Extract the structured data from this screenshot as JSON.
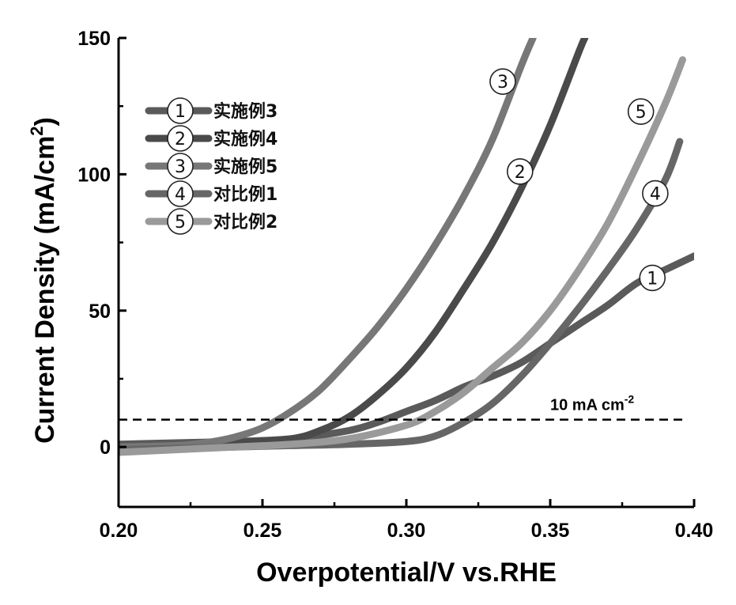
{
  "chart_data": {
    "type": "line",
    "title": "",
    "xlabel": "Overpotential/V vs.RHE",
    "ylabel": "Current Density (mA/cm",
    "ylabel_sup": "2",
    "ylabel_close": ")",
    "xlim": [
      0.2,
      0.4
    ],
    "ylim": [
      -22,
      150
    ],
    "xticks": [
      0.2,
      0.25,
      0.3,
      0.35,
      0.4
    ],
    "xtick_labels": [
      "0.20",
      "0.25",
      "0.30",
      "0.35",
      "0.40"
    ],
    "yticks": [
      0,
      50,
      100,
      150
    ],
    "ytick_labels": [
      "0",
      "50",
      "100",
      "150"
    ],
    "legend_position": "top-left",
    "reference_line": {
      "y": 10,
      "label": "10 mA cm",
      "label_sup": "-2"
    },
    "series": [
      {
        "name": "实施例3",
        "marker": "①",
        "color": "#5a5a5a",
        "points": [
          [
            0.2,
            1
          ],
          [
            0.22,
            1.5
          ],
          [
            0.24,
            2
          ],
          [
            0.26,
            3
          ],
          [
            0.28,
            6
          ],
          [
            0.29,
            9
          ],
          [
            0.3,
            13
          ],
          [
            0.31,
            17
          ],
          [
            0.32,
            22
          ],
          [
            0.33,
            26
          ],
          [
            0.34,
            31
          ],
          [
            0.35,
            38
          ],
          [
            0.36,
            45
          ],
          [
            0.37,
            52
          ],
          [
            0.38,
            60
          ],
          [
            0.39,
            65
          ],
          [
            0.4,
            70
          ]
        ],
        "marker_point": [
          0.3855,
          62
        ]
      },
      {
        "name": "实施例4",
        "marker": "②",
        "color": "#4a4a4a",
        "points": [
          [
            0.2,
            0
          ],
          [
            0.22,
            0.5
          ],
          [
            0.24,
            1.5
          ],
          [
            0.26,
            3
          ],
          [
            0.27,
            6
          ],
          [
            0.28,
            11
          ],
          [
            0.29,
            19
          ],
          [
            0.3,
            29
          ],
          [
            0.31,
            42
          ],
          [
            0.32,
            58
          ],
          [
            0.33,
            75
          ],
          [
            0.34,
            95
          ],
          [
            0.35,
            118
          ],
          [
            0.36,
            145
          ],
          [
            0.362,
            150
          ]
        ],
        "marker_point": [
          0.3395,
          101
        ]
      },
      {
        "name": "实施例5",
        "marker": "③",
        "color": "#777777",
        "points": [
          [
            0.2,
            0
          ],
          [
            0.22,
            0.5
          ],
          [
            0.23,
            1.5
          ],
          [
            0.24,
            3.5
          ],
          [
            0.25,
            7
          ],
          [
            0.26,
            13
          ],
          [
            0.27,
            21
          ],
          [
            0.28,
            32
          ],
          [
            0.29,
            44
          ],
          [
            0.3,
            58
          ],
          [
            0.31,
            74
          ],
          [
            0.32,
            92
          ],
          [
            0.33,
            113
          ],
          [
            0.34,
            140
          ],
          [
            0.344,
            150
          ]
        ],
        "marker_point": [
          0.3335,
          134
        ]
      },
      {
        "name": "对比例1",
        "marker": "④",
        "color": "#666666",
        "points": [
          [
            0.2,
            -1
          ],
          [
            0.22,
            -0.5
          ],
          [
            0.24,
            0
          ],
          [
            0.26,
            0.5
          ],
          [
            0.28,
            1
          ],
          [
            0.3,
            2
          ],
          [
            0.31,
            4
          ],
          [
            0.32,
            9
          ],
          [
            0.33,
            16
          ],
          [
            0.34,
            26
          ],
          [
            0.35,
            38
          ],
          [
            0.36,
            51
          ],
          [
            0.37,
            65
          ],
          [
            0.38,
            80
          ],
          [
            0.39,
            98
          ],
          [
            0.395,
            112
          ]
        ],
        "marker_point": [
          0.3865,
          93
        ]
      },
      {
        "name": "对比例2",
        "marker": "⑤",
        "color": "#9a9a9a",
        "points": [
          [
            0.2,
            -2
          ],
          [
            0.22,
            -1
          ],
          [
            0.24,
            0
          ],
          [
            0.26,
            1
          ],
          [
            0.28,
            3
          ],
          [
            0.3,
            8
          ],
          [
            0.31,
            13
          ],
          [
            0.32,
            20
          ],
          [
            0.33,
            29
          ],
          [
            0.34,
            38
          ],
          [
            0.35,
            50
          ],
          [
            0.36,
            65
          ],
          [
            0.37,
            82
          ],
          [
            0.38,
            103
          ],
          [
            0.39,
            126
          ],
          [
            0.396,
            142
          ]
        ],
        "marker_point": [
          0.3815,
          123
        ]
      }
    ]
  }
}
